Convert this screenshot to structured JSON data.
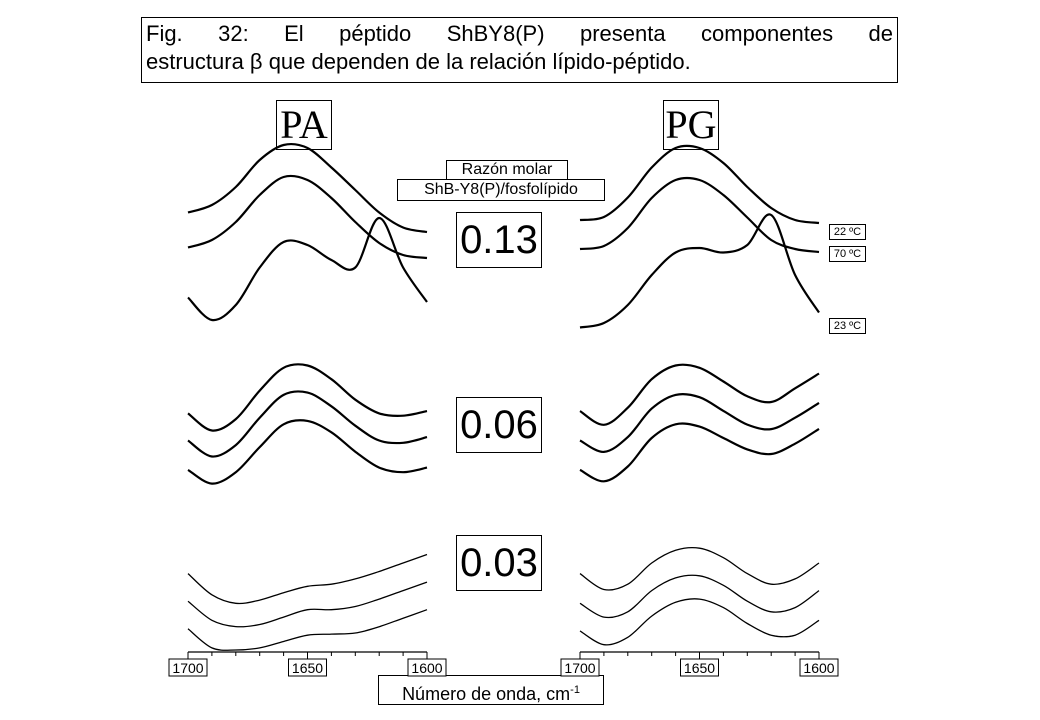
{
  "caption": {
    "line1": "Fig. 32: El péptido ShBY8(P) presenta componentes de",
    "line2": "estructura β que dependen de la relación lípido-péptido."
  },
  "panels": {
    "left_title": "PA",
    "right_title": "PG"
  },
  "ratio_header": {
    "line1": "Razón molar",
    "line2": "ShB-Y8(P)/fosfolípido"
  },
  "ratio_values": [
    "0.13",
    "0.06",
    "0.03"
  ],
  "temperatures": [
    "22 ºC",
    "70 ºC",
    "23 ºC"
  ],
  "axis": {
    "xlabel_main": "Número de onda, cm",
    "xlabel_sup": "-1",
    "ticks": [
      "1700",
      "1650",
      "1600"
    ]
  },
  "chart_data": {
    "type": "line",
    "x_range": [
      1700,
      1600
    ],
    "x_reversed": true,
    "grid": false,
    "panels": [
      {
        "lipid": "PA",
        "ratio": "0.13",
        "series": [
          {
            "name": "22 ºC",
            "x": [
              1700,
              1690,
              1680,
              1670,
              1660,
              1650,
              1640,
              1630,
              1620,
              1610,
              1600
            ],
            "y": [
              0.55,
              0.6,
              0.72,
              0.9,
              1.0,
              0.98,
              0.85,
              0.7,
              0.55,
              0.45,
              0.42
            ]
          },
          {
            "name": "70 ºC",
            "x": [
              1700,
              1690,
              1680,
              1670,
              1660,
              1650,
              1640,
              1630,
              1620,
              1610,
              1600
            ],
            "y": [
              0.45,
              0.5,
              0.62,
              0.8,
              0.92,
              0.9,
              0.78,
              0.62,
              0.48,
              0.4,
              0.38
            ]
          },
          {
            "name": "23 ºC",
            "x": [
              1700,
              1690,
              1680,
              1670,
              1660,
              1650,
              1640,
              1630,
              1620,
              1610,
              1600
            ],
            "y": [
              0.25,
              0.1,
              0.2,
              0.45,
              0.62,
              0.6,
              0.5,
              0.45,
              0.78,
              0.45,
              0.22
            ]
          }
        ]
      },
      {
        "lipid": "PA",
        "ratio": "0.06",
        "series": [
          {
            "name": "22 ºC",
            "x": [
              1700,
              1690,
              1680,
              1670,
              1660,
              1650,
              1640,
              1630,
              1620,
              1610,
              1600
            ],
            "y": [
              0.4,
              0.25,
              0.35,
              0.6,
              0.8,
              0.82,
              0.7,
              0.52,
              0.4,
              0.38,
              0.42
            ]
          },
          {
            "name": "70 ºC",
            "x": [
              1700,
              1690,
              1680,
              1670,
              1660,
              1650,
              1640,
              1630,
              1620,
              1610,
              1600
            ],
            "y": [
              0.32,
              0.18,
              0.28,
              0.52,
              0.72,
              0.74,
              0.62,
              0.45,
              0.32,
              0.3,
              0.35
            ]
          },
          {
            "name": "23 ºC",
            "x": [
              1700,
              1690,
              1680,
              1670,
              1660,
              1650,
              1640,
              1630,
              1620,
              1610,
              1600
            ],
            "y": [
              0.22,
              0.1,
              0.2,
              0.42,
              0.62,
              0.65,
              0.55,
              0.38,
              0.24,
              0.2,
              0.24
            ]
          }
        ]
      },
      {
        "lipid": "PA",
        "ratio": "0.03",
        "series": [
          {
            "name": "22 ºC",
            "x": [
              1700,
              1690,
              1680,
              1670,
              1660,
              1650,
              1640,
              1630,
              1620,
              1610,
              1600
            ],
            "y": [
              0.4,
              0.2,
              0.12,
              0.15,
              0.22,
              0.28,
              0.3,
              0.35,
              0.42,
              0.5,
              0.58
            ]
          },
          {
            "name": "70 ºC",
            "x": [
              1700,
              1690,
              1680,
              1670,
              1660,
              1650,
              1640,
              1630,
              1620,
              1610,
              1600
            ],
            "y": [
              0.3,
              0.12,
              0.06,
              0.08,
              0.15,
              0.22,
              0.22,
              0.25,
              0.32,
              0.4,
              0.48
            ]
          },
          {
            "name": "23 ºC",
            "x": [
              1700,
              1690,
              1680,
              1670,
              1660,
              1650,
              1640,
              1630,
              1620,
              1610,
              1600
            ],
            "y": [
              0.2,
              0.02,
              0.0,
              0.02,
              0.08,
              0.14,
              0.15,
              0.16,
              0.22,
              0.3,
              0.38
            ]
          }
        ]
      },
      {
        "lipid": "PG",
        "ratio": "0.13",
        "series": [
          {
            "name": "22 ºC",
            "x": [
              1700,
              1690,
              1680,
              1670,
              1660,
              1650,
              1640,
              1630,
              1620,
              1610,
              1600
            ],
            "y": [
              0.5,
              0.52,
              0.65,
              0.85,
              0.98,
              0.98,
              0.88,
              0.72,
              0.58,
              0.5,
              0.48
            ]
          },
          {
            "name": "70 ºC",
            "x": [
              1700,
              1690,
              1680,
              1670,
              1660,
              1650,
              1640,
              1630,
              1620,
              1610,
              1600
            ],
            "y": [
              0.44,
              0.46,
              0.58,
              0.78,
              0.9,
              0.9,
              0.8,
              0.65,
              0.5,
              0.44,
              0.42
            ]
          },
          {
            "name": "23 ºC",
            "x": [
              1700,
              1690,
              1680,
              1670,
              1660,
              1650,
              1640,
              1630,
              1620,
              1610,
              1600
            ],
            "y": [
              0.05,
              0.08,
              0.2,
              0.4,
              0.55,
              0.58,
              0.55,
              0.6,
              0.8,
              0.4,
              0.15
            ]
          }
        ]
      },
      {
        "lipid": "PG",
        "ratio": "0.06",
        "series": [
          {
            "name": "22 ºC",
            "x": [
              1700,
              1690,
              1680,
              1670,
              1660,
              1650,
              1640,
              1630,
              1620,
              1610,
              1600
            ],
            "y": [
              0.42,
              0.3,
              0.45,
              0.7,
              0.82,
              0.8,
              0.68,
              0.55,
              0.5,
              0.62,
              0.75
            ]
          },
          {
            "name": "70 ºC",
            "x": [
              1700,
              1690,
              1680,
              1670,
              1660,
              1650,
              1640,
              1630,
              1620,
              1610,
              1600
            ],
            "y": [
              0.32,
              0.22,
              0.35,
              0.6,
              0.72,
              0.7,
              0.58,
              0.46,
              0.42,
              0.52,
              0.65
            ]
          },
          {
            "name": "23 ºC",
            "x": [
              1700,
              1690,
              1680,
              1670,
              1660,
              1650,
              1640,
              1630,
              1620,
              1610,
              1600
            ],
            "y": [
              0.22,
              0.12,
              0.25,
              0.5,
              0.62,
              0.6,
              0.5,
              0.4,
              0.36,
              0.45,
              0.58
            ]
          }
        ]
      },
      {
        "lipid": "PG",
        "ratio": "0.03",
        "series": [
          {
            "name": "22 ºC",
            "x": [
              1700,
              1690,
              1680,
              1670,
              1660,
              1650,
              1640,
              1630,
              1620,
              1610,
              1600
            ],
            "y": [
              0.4,
              0.25,
              0.3,
              0.5,
              0.62,
              0.64,
              0.55,
              0.4,
              0.3,
              0.35,
              0.5
            ]
          },
          {
            "name": "70 ºC",
            "x": [
              1700,
              1690,
              1680,
              1670,
              1660,
              1650,
              1640,
              1630,
              1620,
              1610,
              1600
            ],
            "y": [
              0.28,
              0.15,
              0.2,
              0.4,
              0.52,
              0.54,
              0.45,
              0.3,
              0.2,
              0.24,
              0.4
            ]
          },
          {
            "name": "23 ºC",
            "x": [
              1700,
              1690,
              1680,
              1670,
              1660,
              1650,
              1640,
              1630,
              1620,
              1610,
              1600
            ],
            "y": [
              0.18,
              0.05,
              0.12,
              0.32,
              0.45,
              0.48,
              0.4,
              0.25,
              0.14,
              0.14,
              0.28
            ]
          }
        ]
      }
    ]
  }
}
